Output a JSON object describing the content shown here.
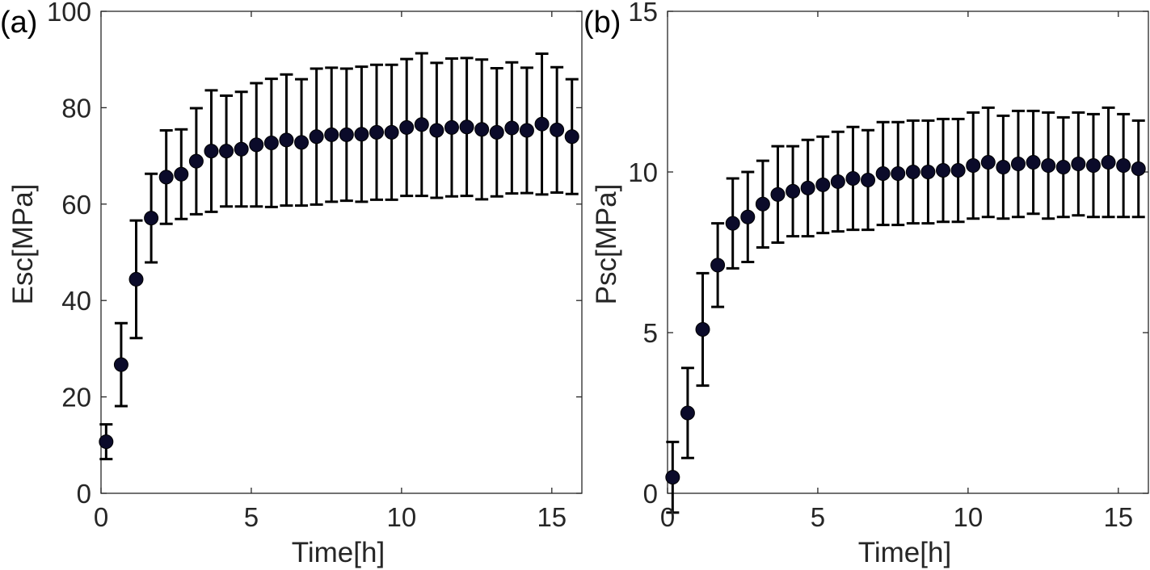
{
  "chart_data": [
    {
      "type": "scatter",
      "panel_label": "(a)",
      "xlabel": "Time[h]",
      "ylabel": "Esc[MPa]",
      "xlim": [
        0,
        16
      ],
      "ylim": [
        0,
        100
      ],
      "xticks": [
        "0",
        "5",
        "10",
        "15"
      ],
      "yticks": [
        "0",
        "20",
        "40",
        "60",
        "80",
        "100"
      ],
      "marker_color": "#0b0b2a",
      "errorbars": true,
      "x": [
        0.17,
        0.67,
        1.17,
        1.67,
        2.17,
        2.67,
        3.17,
        3.67,
        4.17,
        4.67,
        5.17,
        5.67,
        6.17,
        6.67,
        7.17,
        7.67,
        8.17,
        8.67,
        9.17,
        9.67,
        10.17,
        10.67,
        11.17,
        11.67,
        12.17,
        12.67,
        13.17,
        13.67,
        14.17,
        14.67,
        15.17,
        15.67
      ],
      "y": [
        10.7,
        26.7,
        44.4,
        57.1,
        65.6,
        66.2,
        68.9,
        71.0,
        71.0,
        71.4,
        72.3,
        72.7,
        73.3,
        72.8,
        74.0,
        74.4,
        74.4,
        74.5,
        74.9,
        74.9,
        75.9,
        76.5,
        75.3,
        75.9,
        76.0,
        75.5,
        74.9,
        75.8,
        75.3,
        76.6,
        75.4,
        74.0
      ],
      "err": [
        3.6,
        8.6,
        12.2,
        9.2,
        9.7,
        9.3,
        11.0,
        12.6,
        11.5,
        11.9,
        12.8,
        13.3,
        13.6,
        13.1,
        14.1,
        13.9,
        13.7,
        14.0,
        14.0,
        14.0,
        14.2,
        14.8,
        14.0,
        14.3,
        14.3,
        14.5,
        13.3,
        13.6,
        13.0,
        14.6,
        13.0,
        11.9
      ]
    },
    {
      "type": "scatter",
      "panel_label": "(b)",
      "xlabel": "Time[h]",
      "ylabel": "Psc[MPa]",
      "xlim": [
        0,
        16
      ],
      "ylim": [
        0,
        15
      ],
      "xticks": [
        "0",
        "5",
        "10",
        "15"
      ],
      "yticks": [
        "0",
        "5",
        "10",
        "15"
      ],
      "marker_color": "#0b0b2a",
      "errorbars": true,
      "x": [
        0.17,
        0.67,
        1.17,
        1.67,
        2.17,
        2.67,
        3.17,
        3.67,
        4.17,
        4.67,
        5.17,
        5.67,
        6.17,
        6.67,
        7.17,
        7.67,
        8.17,
        8.67,
        9.17,
        9.67,
        10.17,
        10.67,
        11.17,
        11.67,
        12.17,
        12.67,
        13.17,
        13.67,
        14.17,
        14.67,
        15.17,
        15.67
      ],
      "y": [
        0.5,
        2.5,
        5.1,
        7.1,
        8.4,
        8.6,
        9.0,
        9.3,
        9.4,
        9.5,
        9.6,
        9.7,
        9.8,
        9.75,
        9.95,
        9.95,
        10.0,
        10.0,
        10.05,
        10.05,
        10.2,
        10.3,
        10.15,
        10.25,
        10.3,
        10.2,
        10.15,
        10.25,
        10.2,
        10.3,
        10.2,
        10.1
      ],
      "err": [
        1.1,
        1.4,
        1.75,
        1.3,
        1.4,
        1.4,
        1.35,
        1.5,
        1.4,
        1.5,
        1.5,
        1.55,
        1.6,
        1.55,
        1.6,
        1.6,
        1.6,
        1.6,
        1.6,
        1.6,
        1.65,
        1.7,
        1.6,
        1.65,
        1.6,
        1.65,
        1.55,
        1.6,
        1.6,
        1.7,
        1.6,
        1.5
      ]
    }
  ]
}
